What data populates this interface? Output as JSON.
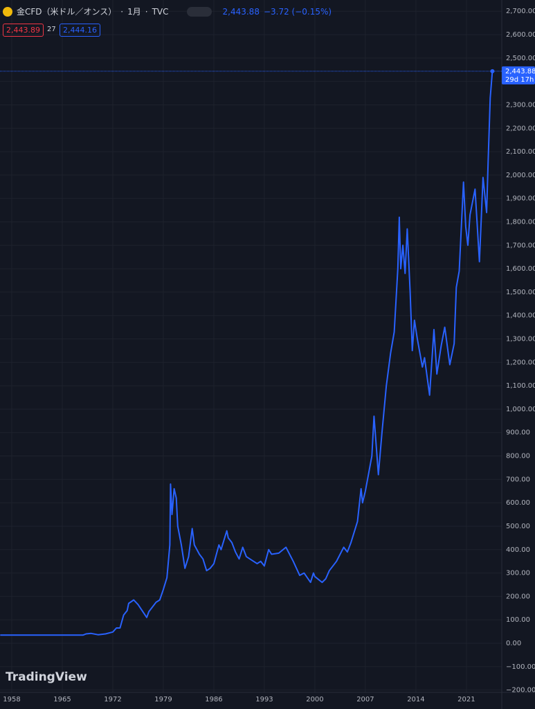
{
  "chart_data": {
    "type": "line",
    "title": "金CFD（米ドル／オンス）",
    "interval": "1月",
    "exchange": "TVC",
    "price": "2,443.88",
    "change": "−3.72 (−0.15%)",
    "bid": "2,443.89",
    "spread": "27",
    "ask": "2,444.16",
    "last_value_label": "2,443.88",
    "countdown": "29d 17h",
    "brand": "TradingView",
    "color": "#2962ff",
    "grid": true,
    "x": [
      1956.4,
      1967.9,
      1968.3,
      1969,
      1970,
      1971,
      1972,
      1972.5,
      1973,
      1973.5,
      1974,
      1974.2,
      1974.9,
      1975.5,
      1976.7,
      1977,
      1978,
      1978.5,
      1979,
      1979.5,
      1979.9,
      1980,
      1980.2,
      1980.5,
      1980.8,
      1981,
      1981.5,
      1982,
      1982.5,
      1983,
      1983.3,
      1984,
      1984.5,
      1985,
      1985.5,
      1986,
      1986.7,
      1987,
      1987.8,
      1988,
      1988.5,
      1989,
      1989.5,
      1990,
      1990.5,
      1991,
      1992,
      1992.5,
      1993,
      1993.6,
      1994,
      1995,
      1996,
      1997,
      1997.9,
      1998.5,
      1999.4,
      1999.8,
      2000,
      2001,
      2001.5,
      2002,
      2003,
      2004,
      2004.5,
      2005,
      2005.9,
      2006.4,
      2006.6,
      2007,
      2007.9,
      2008.2,
      2008.8,
      2009.3,
      2009.9,
      2010.5,
      2011,
      2011.5,
      2011.7,
      2011.9,
      2012.2,
      2012.5,
      2012.8,
      2013.2,
      2013.5,
      2013.8,
      2014.2,
      2014.9,
      2015.2,
      2015.9,
      2016.5,
      2016.9,
      2017.5,
      2018,
      2018.7,
      2019.3,
      2019.6,
      2020,
      2020.6,
      2020.9,
      2021.2,
      2021.5,
      2022.2,
      2022.8,
      2023.3,
      2023.8,
      2024,
      2024.3,
      2024.6
    ],
    "values": [
      35,
      35,
      40,
      42,
      36,
      40,
      48,
      65,
      65,
      120,
      140,
      170,
      185,
      165,
      110,
      135,
      175,
      185,
      230,
      280,
      420,
      680,
      550,
      660,
      620,
      500,
      420,
      320,
      370,
      490,
      420,
      380,
      360,
      310,
      320,
      340,
      420,
      400,
      480,
      450,
      430,
      390,
      360,
      410,
      370,
      360,
      340,
      350,
      330,
      400,
      380,
      385,
      410,
      350,
      290,
      300,
      260,
      300,
      285,
      260,
      275,
      310,
      350,
      410,
      390,
      430,
      520,
      660,
      600,
      650,
      800,
      970,
      720,
      900,
      1100,
      1240,
      1330,
      1600,
      1820,
      1600,
      1700,
      1580,
      1770,
      1500,
      1250,
      1380,
      1300,
      1180,
      1220,
      1060,
      1340,
      1150,
      1270,
      1350,
      1190,
      1280,
      1520,
      1590,
      1970,
      1780,
      1700,
      1830,
      1940,
      1630,
      1990,
      1840,
      2050,
      2330,
      2443.88
    ],
    "xlim": [
      1956.37,
      2025.9
    ],
    "xticks": [
      1958,
      1965,
      1972,
      1979,
      1986,
      1993,
      2000,
      2007,
      2014,
      2021
    ],
    "ylim": [
      -210,
      2748
    ],
    "yticks": [
      {
        "value": -200,
        "label": "−200.00"
      },
      {
        "value": -100,
        "label": "−100.00"
      },
      {
        "value": 0,
        "label": "0.00"
      },
      {
        "value": 100,
        "label": "100.00"
      },
      {
        "value": 200,
        "label": "200.00"
      },
      {
        "value": 300,
        "label": "300.00"
      },
      {
        "value": 400,
        "label": "400.00"
      },
      {
        "value": 500,
        "label": "500.00"
      },
      {
        "value": 600,
        "label": "600.00"
      },
      {
        "value": 700,
        "label": "700.00"
      },
      {
        "value": 800,
        "label": "800.00"
      },
      {
        "value": 900,
        "label": "900.00"
      },
      {
        "value": 1000,
        "label": "1,000.00"
      },
      {
        "value": 1100,
        "label": "1,100.00"
      },
      {
        "value": 1200,
        "label": "1,200.00"
      },
      {
        "value": 1300,
        "label": "1,300.00"
      },
      {
        "value": 1400,
        "label": "1,400.00"
      },
      {
        "value": 1500,
        "label": "1,500.00"
      },
      {
        "value": 1600,
        "label": "1,600.00"
      },
      {
        "value": 1700,
        "label": "1,700.00"
      },
      {
        "value": 1800,
        "label": "1,800.00"
      },
      {
        "value": 1900,
        "label": "1,900.00"
      },
      {
        "value": 2000,
        "label": "2,000.00"
      },
      {
        "value": 2100,
        "label": "2,100.00"
      },
      {
        "value": 2200,
        "label": "2,200.00"
      },
      {
        "value": 2300,
        "label": "2,300.00"
      },
      {
        "value": 2400,
        "label": "2,400.00"
      },
      {
        "value": 2500,
        "label": "2,500.00"
      },
      {
        "value": 2600,
        "label": "2,600.00"
      },
      {
        "value": 2700,
        "label": "2,700.00"
      }
    ]
  }
}
